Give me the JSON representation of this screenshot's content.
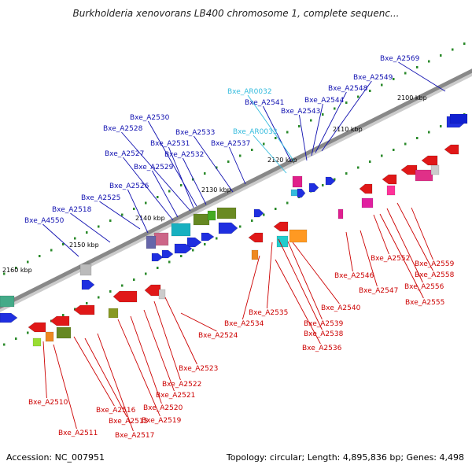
{
  "title": "Burkholderia xenovorans LB400 chromosome 1, complete sequenc...",
  "footer": {
    "accession": "Accession: NC_007951",
    "summary": "Topology: circular; Length: 4,895,836 bp; Genes: 4,498"
  },
  "colors": {
    "forward_label": "#1010b0",
    "reverse_label": "#cc0000",
    "rna_label": "#33bbdd",
    "backbone": "#888888"
  },
  "kbp_markers": [
    "2100 kbp",
    "2110 kbp",
    "2120 kbp",
    "2130 kbp",
    "2140 kbp",
    "2150 kbp",
    "2160 kbp"
  ],
  "forward_genes": [
    "Bxe_A2569",
    "Bxe_A2549",
    "Bxe_A2548",
    "Bxe_A2544",
    "Bxe_A2541",
    "Bxe_A2543",
    "Bxe_A2530",
    "Bxe_A2528",
    "Bxe_A2533",
    "Bxe_A2531",
    "Bxe_A2537",
    "Bxe_A2527",
    "Bxe_A2532",
    "Bxe_A2529",
    "Bxe_A2526",
    "Bxe_A2525",
    "Bxe_A2518",
    "Bxe_A4550"
  ],
  "rna_genes": [
    "Bxe_AR0032",
    "Bxe_AR0033"
  ],
  "reverse_genes": [
    "Bxe_A2552",
    "Bxe_A2559",
    "Bxe_A2558",
    "Bxe_A2546",
    "Bxe_A2556",
    "Bxe_A2547",
    "Bxe_A2555",
    "Bxe_A2540",
    "Bxe_A2535",
    "Bxe_A2534",
    "Bxe_A2539",
    "Bxe_A2538",
    "Bxe_A2524",
    "Bxe_A2536",
    "Bxe_A2523",
    "Bxe_A2522",
    "Bxe_A2521",
    "Bxe_A2510",
    "Bxe_A2520",
    "Bxe_A2516",
    "Bxe_A2515",
    "Bxe_A2519",
    "Bxe_A2511",
    "Bxe_A2517"
  ]
}
